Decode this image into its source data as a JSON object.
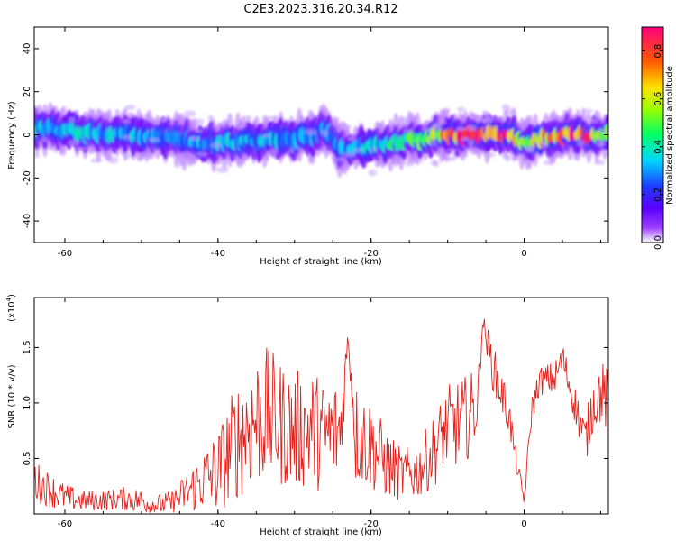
{
  "title": "C2E3.2023.316.20.34.R12",
  "chart_data": [
    {
      "type": "heatmap",
      "xlabel": "Height of straight line (km)",
      "ylabel": "Frequency (Hz)",
      "xlim": [
        -64,
        11
      ],
      "ylim": [
        -50,
        50
      ],
      "x_ticks": [
        -60,
        -40,
        -20,
        0
      ],
      "y_ticks": [
        -40,
        -20,
        0,
        20,
        40
      ],
      "colorbar": {
        "label": "Normalized spectral amplitude",
        "range": [
          0.0,
          0.9
        ],
        "ticks": [
          "0.0",
          "0.2",
          "0.4",
          "0.6",
          "0.8"
        ],
        "colors": [
          "#ffffff",
          "#7b00ff",
          "#1e3cff",
          "#00e5ff",
          "#00ff66",
          "#b7ff00",
          "#ffd400",
          "#ff3a00",
          "#ff0080"
        ]
      },
      "ridge": {
        "x": [
          -64,
          -60,
          -56,
          -52,
          -48,
          -44,
          -40,
          -36,
          -32,
          -28,
          -26,
          -24,
          -20,
          -16,
          -12,
          -8,
          -4,
          -2,
          0,
          2,
          4,
          6,
          8,
          10,
          11
        ],
        "y": [
          3,
          2,
          1,
          0,
          -1,
          -3,
          -4,
          -3,
          -2,
          -1,
          2,
          -7,
          -5,
          -3,
          -1,
          0,
          0,
          0,
          -4,
          -2,
          0,
          0,
          0,
          0,
          0
        ],
        "level": [
          0.3,
          0.33,
          0.32,
          0.3,
          0.25,
          0.27,
          0.3,
          0.3,
          0.3,
          0.28,
          0.26,
          0.27,
          0.33,
          0.4,
          0.48,
          0.85,
          0.7,
          0.8,
          0.45,
          0.6,
          0.78,
          0.82,
          0.8,
          0.6,
          0.4
        ]
      }
    },
    {
      "type": "line",
      "xlabel": "Height of straight line (km)",
      "ylabel": "SNR (10 * v/v)",
      "scale_label": "(x10^4)",
      "xlim": [
        -64,
        11
      ],
      "ylim": [
        0,
        1.95
      ],
      "x_ticks": [
        -60,
        -40,
        -20,
        0
      ],
      "y_ticks": [
        0.5,
        1.0,
        1.5
      ],
      "color": "#e4201c",
      "series": [
        {
          "x": [
            -64,
            -62,
            -60,
            -58,
            -56,
            -54,
            -52,
            -50,
            -48,
            -46,
            -44,
            -42,
            -40,
            -38,
            -36,
            -34,
            -32,
            -30,
            -28,
            -26,
            -24,
            -23,
            -22,
            -20,
            -18,
            -16,
            -14,
            -12,
            -10,
            -8,
            -6,
            -5.5,
            -4,
            -2,
            -1,
            0,
            1,
            2,
            4,
            5,
            6,
            7,
            8,
            9,
            10,
            11
          ],
          "y": [
            0.3,
            0.22,
            0.15,
            0.12,
            0.12,
            0.13,
            0.14,
            0.12,
            0.08,
            0.1,
            0.2,
            0.3,
            0.38,
            0.62,
            0.8,
            0.9,
            0.82,
            0.75,
            0.78,
            0.7,
            0.75,
            1.6,
            0.72,
            0.62,
            0.45,
            0.35,
            0.38,
            0.55,
            0.78,
            0.82,
            1.0,
            1.75,
            1.3,
            0.9,
            0.45,
            0.12,
            0.95,
            1.2,
            1.22,
            1.4,
            1.15,
            0.9,
            0.65,
            1.0,
            1.1,
            1.0
          ],
          "amp": [
            0.12,
            0.1,
            0.08,
            0.06,
            0.06,
            0.06,
            0.07,
            0.07,
            0.06,
            0.07,
            0.12,
            0.18,
            0.24,
            0.32,
            0.38,
            0.4,
            0.36,
            0.34,
            0.34,
            0.32,
            0.3,
            0.05,
            0.3,
            0.26,
            0.2,
            0.15,
            0.16,
            0.2,
            0.24,
            0.26,
            0.2,
            0.05,
            0.14,
            0.12,
            0.06,
            0.04,
            0.08,
            0.08,
            0.1,
            0.1,
            0.1,
            0.12,
            0.14,
            0.16,
            0.18,
            0.2
          ]
        }
      ]
    }
  ]
}
